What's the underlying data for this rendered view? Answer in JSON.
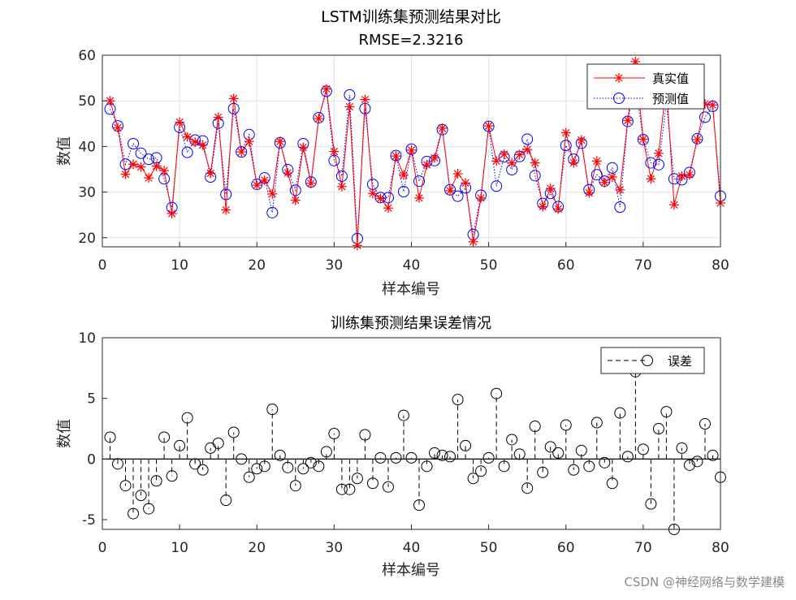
{
  "watermark": "CSDN @神经网络与数学建模",
  "chart_data": [
    {
      "type": "line",
      "title": "LSTM训练集预测结果对比",
      "subtitle": "RMSE=2.3216",
      "xlabel": "样本编号",
      "ylabel": "数值",
      "xlim": [
        0,
        80
      ],
      "ylim": [
        18,
        60
      ],
      "xticks": [
        0,
        10,
        20,
        30,
        40,
        50,
        60,
        70,
        80
      ],
      "yticks": [
        20,
        30,
        40,
        50,
        60
      ],
      "grid": true,
      "legend_position": "top-right",
      "x": [
        1,
        2,
        3,
        4,
        5,
        6,
        7,
        8,
        9,
        10,
        11,
        12,
        13,
        14,
        15,
        16,
        17,
        18,
        19,
        20,
        21,
        22,
        23,
        24,
        25,
        26,
        27,
        28,
        29,
        30,
        31,
        32,
        33,
        34,
        35,
        36,
        37,
        38,
        39,
        40,
        41,
        42,
        43,
        44,
        45,
        46,
        47,
        48,
        49,
        50,
        51,
        52,
        53,
        54,
        55,
        56,
        57,
        58,
        59,
        60,
        61,
        62,
        63,
        64,
        65,
        66,
        67,
        68,
        69,
        70,
        71,
        72,
        73,
        74,
        75,
        76,
        77,
        78,
        79,
        80
      ],
      "series": [
        {
          "name": "真实值",
          "color": "#ff0000",
          "marker": "asterisk",
          "line": "solid",
          "values": [
            50.0,
            44.1,
            33.9,
            36.1,
            35.5,
            33.1,
            35.7,
            34.7,
            25.3,
            45.3,
            42.1,
            41.0,
            40.3,
            34.1,
            46.4,
            26.1,
            50.5,
            38.8,
            41.1,
            31.5,
            32.6,
            29.6,
            41.1,
            34.2,
            28.2,
            39.8,
            31.9,
            46.1,
            52.6,
            38.9,
            31.2,
            48.7,
            18.3,
            50.3,
            29.7,
            28.6,
            26.5,
            37.9,
            33.7,
            39.2,
            28.7,
            36.0,
            37.5,
            44.0,
            30.3,
            34.0,
            32.0,
            19.1,
            28.7,
            44.5,
            36.8,
            38.3,
            36.4,
            38.2,
            39.3,
            36.4,
            26.8,
            30.8,
            26.3,
            43.0,
            36.4,
            41.4,
            29.8,
            36.8,
            32.1,
            33.3,
            30.5,
            45.7,
            58.6,
            41.6,
            32.9,
            38.5,
            53.6,
            27.2,
            33.5,
            33.8,
            41.5,
            49.3,
            49.1,
            27.6
          ]
        },
        {
          "name": "预测值",
          "color": "#0000ff",
          "marker": "circle",
          "line": "dotted",
          "values": [
            48.2,
            44.5,
            36.1,
            40.6,
            38.5,
            37.2,
            37.5,
            32.9,
            26.6,
            44.2,
            38.7,
            41.4,
            41.2,
            33.3,
            45.1,
            29.5,
            48.3,
            38.8,
            42.6,
            31.7,
            33.1,
            25.5,
            40.8,
            34.9,
            30.4,
            40.6,
            32.2,
            46.3,
            52.1,
            36.9,
            33.5,
            51.3,
            19.8,
            48.3,
            31.7,
            28.8,
            28.8,
            38.0,
            30.1,
            39.4,
            32.4,
            36.7,
            36.9,
            43.7,
            30.5,
            29.1,
            30.9,
            20.7,
            29.3,
            44.4,
            31.3,
            37.7,
            34.9,
            37.8,
            41.6,
            33.6,
            27.5,
            29.7,
            26.8,
            40.2,
            37.2,
            40.7,
            30.5,
            33.8,
            32.4,
            35.3,
            26.7,
            45.5,
            53.7,
            41.5,
            36.4,
            36.0,
            49.6,
            32.9,
            32.7,
            34.3,
            41.7,
            46.4,
            48.8,
            29.1
          ]
        }
      ]
    },
    {
      "type": "stem",
      "title": "训练集预测结果误差情况",
      "xlabel": "样本编号",
      "ylabel": "数值",
      "xlim": [
        0,
        80
      ],
      "ylim": [
        -5.8,
        10
      ],
      "xticks": [
        0,
        10,
        20,
        30,
        40,
        50,
        60,
        70,
        80
      ],
      "yticks": [
        -5,
        0,
        5,
        10
      ],
      "grid": false,
      "legend_position": "top-right",
      "series": [
        {
          "name": "误差",
          "color": "#000000",
          "marker": "circle",
          "line": "dashed",
          "values": [
            1.8,
            -0.4,
            -2.2,
            -4.5,
            -3.0,
            -4.1,
            -1.8,
            1.8,
            -1.4,
            1.1,
            3.4,
            -0.4,
            -0.9,
            0.9,
            1.3,
            -3.4,
            2.2,
            0.0,
            -1.5,
            -0.8,
            -0.6,
            4.1,
            0.3,
            -0.7,
            -2.2,
            -0.8,
            -0.3,
            -0.6,
            0.6,
            2.1,
            -2.5,
            -2.5,
            -1.6,
            2.0,
            -2.0,
            0.1,
            -2.3,
            0.1,
            3.6,
            0.1,
            -3.8,
            -0.6,
            0.5,
            0.3,
            0.2,
            4.9,
            1.1,
            -1.6,
            -1.0,
            0.1,
            5.4,
            -0.6,
            1.6,
            0.4,
            -2.4,
            2.7,
            -1.1,
            1.0,
            0.5,
            2.8,
            -0.9,
            0.7,
            -0.6,
            3.0,
            -0.3,
            -2.0,
            3.8,
            0.2,
            7.2,
            0.8,
            -3.7,
            2.5,
            3.9,
            -5.8,
            0.9,
            -0.5,
            -0.2,
            2.9,
            0.3,
            -1.5
          ]
        }
      ]
    }
  ]
}
